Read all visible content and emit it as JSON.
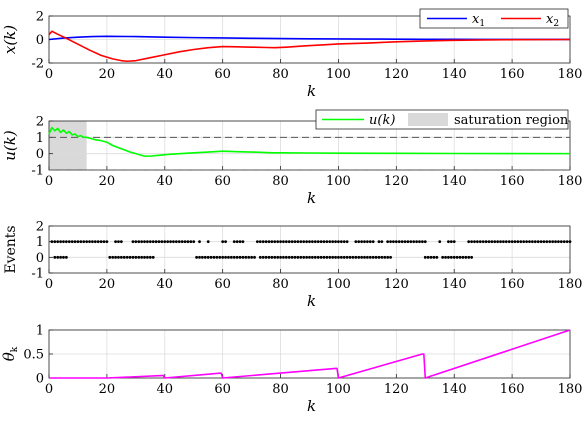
{
  "chart_data": [
    {
      "type": "line",
      "ylabel": "x(k)",
      "xlabel": "k",
      "xlim": [
        0,
        180
      ],
      "ylim": [
        -2,
        2
      ],
      "xticks": [
        "0",
        "20",
        "40",
        "60",
        "80",
        "100",
        "120",
        "140",
        "160",
        "180"
      ],
      "yticks": [
        "-2",
        "0",
        "2"
      ],
      "grid": true,
      "legend": "top-right",
      "legend_entries": [
        {
          "base": "x",
          "sub": "1",
          "color": "#0000ff"
        },
        {
          "base": "x",
          "sub": "2",
          "color": "#ff0000"
        }
      ],
      "series": [
        {
          "name": "x1",
          "color": "#0000ff",
          "x": [
            0,
            5,
            10,
            15,
            20,
            30,
            40,
            50,
            60,
            70,
            80,
            90,
            100,
            110,
            120,
            130,
            140,
            150,
            160,
            170,
            180
          ],
          "y": [
            0,
            0.12,
            0.2,
            0.25,
            0.27,
            0.25,
            0.2,
            0.16,
            0.13,
            0.1,
            0.08,
            0.06,
            0.05,
            0.04,
            0.03,
            0.02,
            0.015,
            0.01,
            0.005,
            0.003,
            0.002
          ]
        },
        {
          "name": "x2",
          "color": "#ff0000",
          "x": [
            0,
            1,
            3,
            6,
            10,
            14,
            18,
            22,
            25,
            27,
            30,
            35,
            40,
            45,
            50,
            55,
            60,
            65,
            70,
            75,
            78,
            82,
            88,
            95,
            100,
            110,
            120,
            130,
            140,
            150,
            160,
            170,
            180
          ],
          "y": [
            0.4,
            0.7,
            0.45,
            0.1,
            -0.4,
            -0.9,
            -1.35,
            -1.65,
            -1.8,
            -1.85,
            -1.8,
            -1.55,
            -1.3,
            -1.05,
            -0.85,
            -0.7,
            -0.6,
            -0.62,
            -0.65,
            -0.68,
            -0.7,
            -0.65,
            -0.55,
            -0.45,
            -0.38,
            -0.3,
            -0.2,
            -0.12,
            -0.07,
            -0.04,
            -0.02,
            -0.01,
            0
          ]
        }
      ]
    },
    {
      "type": "line",
      "ylabel": "u(k)",
      "xlabel": "k",
      "xlim": [
        0,
        180
      ],
      "ylim": [
        -1,
        2
      ],
      "xticks": [
        "0",
        "20",
        "40",
        "60",
        "80",
        "100",
        "120",
        "140",
        "160",
        "180"
      ],
      "yticks": [
        "-1",
        "0",
        "1",
        "2"
      ],
      "grid": true,
      "legend": "top-right",
      "legend_entries": [
        {
          "label": "u(k)",
          "color": "#00ff00",
          "kind": "line"
        },
        {
          "label": "saturation region",
          "color": "#d9d9d9",
          "kind": "patch"
        }
      ],
      "saturation_region": {
        "x0": 0,
        "x1": 13
      },
      "limits": [
        1,
        -1
      ],
      "series": [
        {
          "name": "u",
          "color": "#00ff00",
          "x": [
            0,
            1,
            2,
            3,
            4,
            5,
            6,
            7,
            8,
            9,
            10,
            11,
            12,
            13,
            14,
            16,
            18,
            20,
            22,
            25,
            28,
            31,
            33,
            35,
            38,
            41,
            45,
            50,
            55,
            60,
            65,
            70,
            75,
            77,
            80,
            90,
            100,
            120,
            140,
            160,
            180
          ],
          "y": [
            1.2,
            1.6,
            1.4,
            1.55,
            1.3,
            1.45,
            1.25,
            1.35,
            1.15,
            1.2,
            1.05,
            1.1,
            1.0,
            1.0,
            0.95,
            0.85,
            0.8,
            0.7,
            0.5,
            0.3,
            0.1,
            -0.05,
            -0.15,
            -0.15,
            -0.1,
            -0.05,
            0,
            0.05,
            0.1,
            0.15,
            0.12,
            0.1,
            0.07,
            0.05,
            0.05,
            0.04,
            0.03,
            0.02,
            0.01,
            0.005,
            0.002
          ]
        }
      ]
    },
    {
      "type": "scatter",
      "ylabel": "Events",
      "xlabel": "k",
      "xlim": [
        0,
        180
      ],
      "ylim": [
        -1,
        2
      ],
      "xticks": [
        "0",
        "20",
        "40",
        "60",
        "80",
        "100",
        "120",
        "140",
        "160",
        "180"
      ],
      "yticks": [
        "-1",
        "0",
        "1",
        "2"
      ],
      "grid": true,
      "series": [
        {
          "name": "events",
          "color": "#000000",
          "ones": [
            [
              1,
              20
            ],
            [
              23,
              25
            ],
            [
              29,
              50
            ],
            [
              52,
              52
            ],
            [
              55,
              55
            ],
            [
              60,
              61
            ],
            [
              64,
              67
            ],
            [
              72,
              103
            ],
            [
              106,
              112
            ],
            [
              114,
              115
            ],
            [
              117,
              130
            ],
            [
              135,
              135
            ],
            [
              138,
              140
            ],
            [
              145,
              180
            ]
          ],
          "zeros": [
            [
              2,
              6
            ],
            [
              21,
              36
            ],
            [
              51,
              70
            ],
            [
              71,
              71
            ],
            [
              73,
              118
            ],
            [
              130,
              134
            ],
            [
              136,
              146
            ]
          ]
        }
      ]
    },
    {
      "type": "line",
      "ylabel": "θ_k",
      "xlabel": "k",
      "xlim": [
        0,
        180
      ],
      "ylim": [
        0,
        1
      ],
      "xticks": [
        "0",
        "20",
        "40",
        "60",
        "80",
        "100",
        "120",
        "140",
        "160",
        "180"
      ],
      "yticks": [
        "0",
        "0.5",
        "1"
      ],
      "grid": true,
      "series": [
        {
          "name": "theta",
          "color": "#ff00ff",
          "x": [
            0,
            20,
            39,
            39.5,
            40,
            59,
            59.5,
            60,
            99,
            99.5,
            100,
            129,
            129.5,
            130,
            180
          ],
          "y": [
            0,
            0,
            0.05,
            0.05,
            0,
            0.1,
            0.1,
            0,
            0.2,
            0.2,
            0,
            0.5,
            0.5,
            0,
            1.0
          ]
        }
      ]
    }
  ],
  "labels": {
    "p1_ylabel": "x(k)",
    "p2_ylabel": "u(k)",
    "p3_ylabel": "Events",
    "p4_ylabel": "θ",
    "p4_ysub": "k",
    "xlabel": "k",
    "leg2_u": "u(k)",
    "leg2_sat": "saturation region"
  }
}
